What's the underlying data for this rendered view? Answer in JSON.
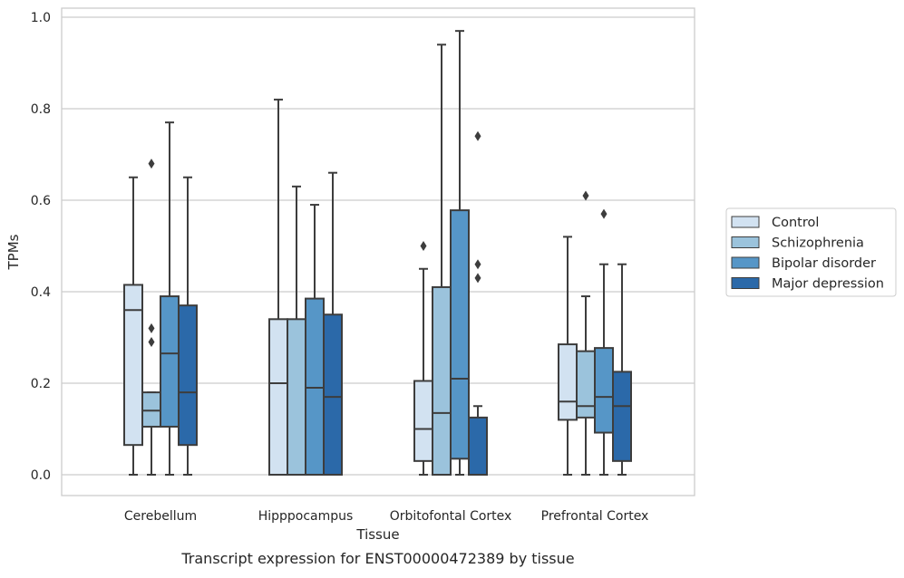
{
  "chart_data": {
    "type": "box",
    "xlabel": "Tissue",
    "ylabel": "TPMs",
    "caption": "Transcript expression for ENST00000472389 by tissue",
    "ylim": [
      -0.05,
      1.02
    ],
    "yticks": [
      "0.0",
      "0.2",
      "0.4",
      "0.6",
      "0.8",
      "1.0"
    ],
    "grid": "y",
    "legend_position": "right",
    "categories": [
      "Cerebellum",
      "Hipppocampus",
      "Orbitofontal Cortex",
      "Prefrontal Cortex"
    ],
    "series": [
      {
        "name": "Control",
        "color": "#d2e2f1",
        "boxes": [
          {
            "whislo": 0.0,
            "q1": 0.065,
            "med": 0.36,
            "q3": 0.415,
            "whishi": 0.65,
            "fliers": []
          },
          {
            "whislo": 0.0,
            "q1": 0.0,
            "med": 0.2,
            "q3": 0.34,
            "whishi": 0.82,
            "fliers": []
          },
          {
            "whislo": 0.0,
            "q1": 0.03,
            "med": 0.1,
            "q3": 0.205,
            "whishi": 0.45,
            "fliers": [
              0.5
            ]
          },
          {
            "whislo": 0.0,
            "q1": 0.12,
            "med": 0.16,
            "q3": 0.285,
            "whishi": 0.52,
            "fliers": []
          }
        ]
      },
      {
        "name": "Schizophrenia",
        "color": "#9bc3dc",
        "boxes": [
          {
            "whislo": 0.0,
            "q1": 0.105,
            "med": 0.14,
            "q3": 0.18,
            "whishi": 0.18,
            "fliers": [
              0.29,
              0.32,
              0.68
            ]
          },
          {
            "whislo": 0.0,
            "q1": 0.0,
            "med": 0.0,
            "q3": 0.34,
            "whishi": 0.63,
            "fliers": []
          },
          {
            "whislo": 0.0,
            "q1": 0.0,
            "med": 0.135,
            "q3": 0.41,
            "whishi": 0.94,
            "fliers": []
          },
          {
            "whislo": 0.0,
            "q1": 0.125,
            "med": 0.15,
            "q3": 0.27,
            "whishi": 0.39,
            "fliers": [
              0.61
            ]
          }
        ]
      },
      {
        "name": "Bipolar disorder",
        "color": "#5696c7",
        "boxes": [
          {
            "whislo": 0.0,
            "q1": 0.105,
            "med": 0.265,
            "q3": 0.39,
            "whishi": 0.77,
            "fliers": []
          },
          {
            "whislo": 0.0,
            "q1": 0.0,
            "med": 0.19,
            "q3": 0.385,
            "whishi": 0.59,
            "fliers": []
          },
          {
            "whislo": 0.0,
            "q1": 0.035,
            "med": 0.21,
            "q3": 0.578,
            "whishi": 0.97,
            "fliers": []
          },
          {
            "whislo": 0.0,
            "q1": 0.092,
            "med": 0.17,
            "q3": 0.277,
            "whishi": 0.46,
            "fliers": [
              0.57
            ]
          }
        ]
      },
      {
        "name": "Major depression",
        "color": "#2b69a9",
        "boxes": [
          {
            "whislo": 0.0,
            "q1": 0.065,
            "med": 0.18,
            "q3": 0.37,
            "whishi": 0.65,
            "fliers": []
          },
          {
            "whislo": 0.0,
            "q1": 0.0,
            "med": 0.17,
            "q3": 0.35,
            "whishi": 0.66,
            "fliers": []
          },
          {
            "whislo": 0.0,
            "q1": 0.0,
            "med": 0.0,
            "q3": 0.125,
            "whishi": 0.15,
            "fliers": [
              0.43,
              0.46,
              0.74
            ]
          },
          {
            "whislo": 0.0,
            "q1": 0.03,
            "med": 0.15,
            "q3": 0.225,
            "whishi": 0.46,
            "fliers": []
          }
        ]
      }
    ]
  }
}
